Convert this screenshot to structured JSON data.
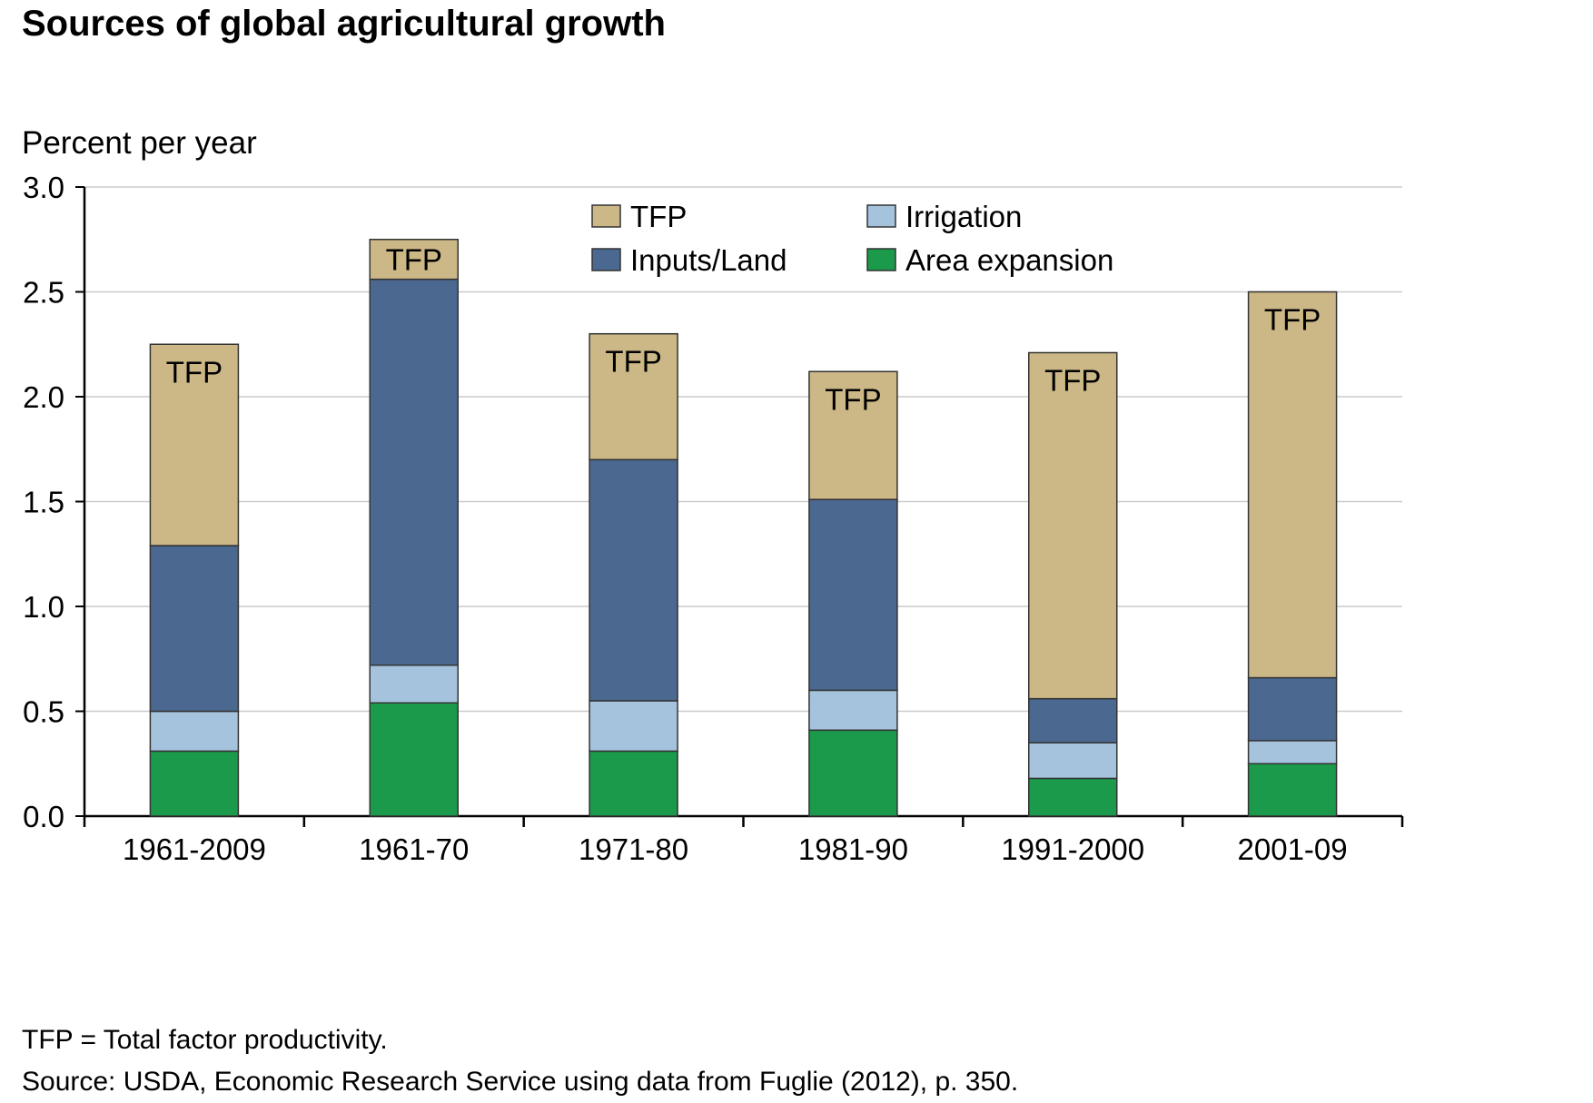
{
  "title": "Sources of global agricultural growth",
  "ylabel": "Percent per year",
  "notes": [
    "TFP = Total factor productivity.",
    "Source: USDA, Economic Research Service using data from Fuglie (2012), p. 350."
  ],
  "colors": {
    "Area expansion": "#1a9a4a",
    "Irrigation": "#a6c3dd",
    "Inputs/Land": "#4b6890",
    "TFP": "#ccb786",
    "grid": "#cccccc",
    "axis": "#000000"
  },
  "bar_label": "TFP",
  "chart_data": {
    "type": "bar",
    "stacked": true,
    "categories": [
      "1961-2009",
      "1961-70",
      "1971-80",
      "1981-90",
      "1991-2000",
      "2001-09"
    ],
    "series": [
      {
        "name": "Area expansion",
        "values": [
          0.31,
          0.54,
          0.31,
          0.41,
          0.18,
          0.25
        ]
      },
      {
        "name": "Irrigation",
        "values": [
          0.19,
          0.18,
          0.24,
          0.19,
          0.17,
          0.11
        ]
      },
      {
        "name": "Inputs/Land",
        "values": [
          0.79,
          1.84,
          1.15,
          0.91,
          0.21,
          0.3
        ]
      },
      {
        "name": "TFP",
        "values": [
          0.96,
          0.19,
          0.6,
          0.61,
          1.65,
          1.84
        ]
      }
    ],
    "ylim": [
      0,
      3.0
    ],
    "yticks": [
      "0.0",
      "0.5",
      "1.0",
      "1.5",
      "2.0",
      "2.5",
      "3.0"
    ],
    "grid": true,
    "legend": {
      "position": "top-center",
      "entries": [
        "TFP",
        "Irrigation",
        "Inputs/Land",
        "Area expansion"
      ]
    }
  }
}
